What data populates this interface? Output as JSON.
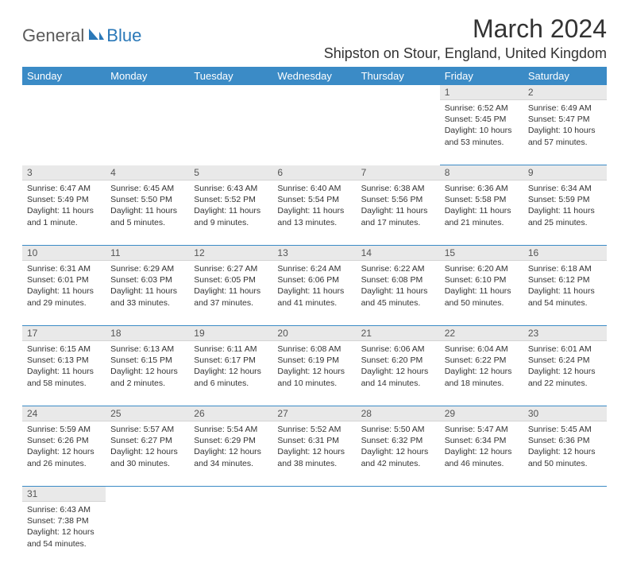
{
  "logo": {
    "text1": "General",
    "text2": "Blue"
  },
  "title": "March 2024",
  "location": "Shipston on Stour, England, United Kingdom",
  "colors": {
    "header_bg": "#3b8bc6",
    "header_fg": "#ffffff",
    "daynum_bg": "#e9e9e9",
    "row_border": "#3b8bc6",
    "logo_gray": "#5a5a5a",
    "logo_blue": "#2a78b8"
  },
  "weekdays": [
    "Sunday",
    "Monday",
    "Tuesday",
    "Wednesday",
    "Thursday",
    "Friday",
    "Saturday"
  ],
  "weeks": [
    [
      null,
      null,
      null,
      null,
      null,
      {
        "n": "1",
        "sunrise": "6:52 AM",
        "sunset": "5:45 PM",
        "daylight": "10 hours and 53 minutes."
      },
      {
        "n": "2",
        "sunrise": "6:49 AM",
        "sunset": "5:47 PM",
        "daylight": "10 hours and 57 minutes."
      }
    ],
    [
      {
        "n": "3",
        "sunrise": "6:47 AM",
        "sunset": "5:49 PM",
        "daylight": "11 hours and 1 minute."
      },
      {
        "n": "4",
        "sunrise": "6:45 AM",
        "sunset": "5:50 PM",
        "daylight": "11 hours and 5 minutes."
      },
      {
        "n": "5",
        "sunrise": "6:43 AM",
        "sunset": "5:52 PM",
        "daylight": "11 hours and 9 minutes."
      },
      {
        "n": "6",
        "sunrise": "6:40 AM",
        "sunset": "5:54 PM",
        "daylight": "11 hours and 13 minutes."
      },
      {
        "n": "7",
        "sunrise": "6:38 AM",
        "sunset": "5:56 PM",
        "daylight": "11 hours and 17 minutes."
      },
      {
        "n": "8",
        "sunrise": "6:36 AM",
        "sunset": "5:58 PM",
        "daylight": "11 hours and 21 minutes."
      },
      {
        "n": "9",
        "sunrise": "6:34 AM",
        "sunset": "5:59 PM",
        "daylight": "11 hours and 25 minutes."
      }
    ],
    [
      {
        "n": "10",
        "sunrise": "6:31 AM",
        "sunset": "6:01 PM",
        "daylight": "11 hours and 29 minutes."
      },
      {
        "n": "11",
        "sunrise": "6:29 AM",
        "sunset": "6:03 PM",
        "daylight": "11 hours and 33 minutes."
      },
      {
        "n": "12",
        "sunrise": "6:27 AM",
        "sunset": "6:05 PM",
        "daylight": "11 hours and 37 minutes."
      },
      {
        "n": "13",
        "sunrise": "6:24 AM",
        "sunset": "6:06 PM",
        "daylight": "11 hours and 41 minutes."
      },
      {
        "n": "14",
        "sunrise": "6:22 AM",
        "sunset": "6:08 PM",
        "daylight": "11 hours and 45 minutes."
      },
      {
        "n": "15",
        "sunrise": "6:20 AM",
        "sunset": "6:10 PM",
        "daylight": "11 hours and 50 minutes."
      },
      {
        "n": "16",
        "sunrise": "6:18 AM",
        "sunset": "6:12 PM",
        "daylight": "11 hours and 54 minutes."
      }
    ],
    [
      {
        "n": "17",
        "sunrise": "6:15 AM",
        "sunset": "6:13 PM",
        "daylight": "11 hours and 58 minutes."
      },
      {
        "n": "18",
        "sunrise": "6:13 AM",
        "sunset": "6:15 PM",
        "daylight": "12 hours and 2 minutes."
      },
      {
        "n": "19",
        "sunrise": "6:11 AM",
        "sunset": "6:17 PM",
        "daylight": "12 hours and 6 minutes."
      },
      {
        "n": "20",
        "sunrise": "6:08 AM",
        "sunset": "6:19 PM",
        "daylight": "12 hours and 10 minutes."
      },
      {
        "n": "21",
        "sunrise": "6:06 AM",
        "sunset": "6:20 PM",
        "daylight": "12 hours and 14 minutes."
      },
      {
        "n": "22",
        "sunrise": "6:04 AM",
        "sunset": "6:22 PM",
        "daylight": "12 hours and 18 minutes."
      },
      {
        "n": "23",
        "sunrise": "6:01 AM",
        "sunset": "6:24 PM",
        "daylight": "12 hours and 22 minutes."
      }
    ],
    [
      {
        "n": "24",
        "sunrise": "5:59 AM",
        "sunset": "6:26 PM",
        "daylight": "12 hours and 26 minutes."
      },
      {
        "n": "25",
        "sunrise": "5:57 AM",
        "sunset": "6:27 PM",
        "daylight": "12 hours and 30 minutes."
      },
      {
        "n": "26",
        "sunrise": "5:54 AM",
        "sunset": "6:29 PM",
        "daylight": "12 hours and 34 minutes."
      },
      {
        "n": "27",
        "sunrise": "5:52 AM",
        "sunset": "6:31 PM",
        "daylight": "12 hours and 38 minutes."
      },
      {
        "n": "28",
        "sunrise": "5:50 AM",
        "sunset": "6:32 PM",
        "daylight": "12 hours and 42 minutes."
      },
      {
        "n": "29",
        "sunrise": "5:47 AM",
        "sunset": "6:34 PM",
        "daylight": "12 hours and 46 minutes."
      },
      {
        "n": "30",
        "sunrise": "5:45 AM",
        "sunset": "6:36 PM",
        "daylight": "12 hours and 50 minutes."
      }
    ],
    [
      {
        "n": "31",
        "sunrise": "6:43 AM",
        "sunset": "7:38 PM",
        "daylight": "12 hours and 54 minutes."
      },
      null,
      null,
      null,
      null,
      null,
      null
    ]
  ],
  "labels": {
    "sunrise": "Sunrise:",
    "sunset": "Sunset:",
    "daylight": "Daylight:"
  }
}
